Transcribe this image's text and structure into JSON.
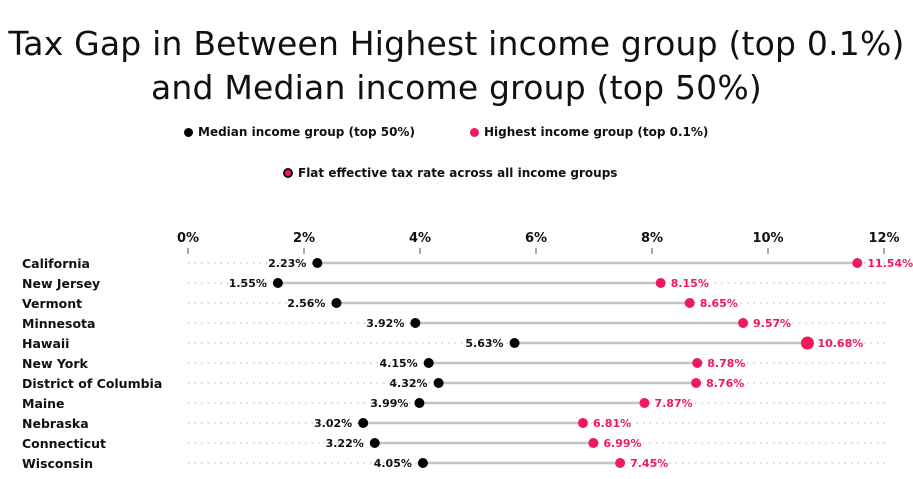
{
  "chart_data": {
    "type": "dumbbell",
    "title": "Tax Gap in Between Highest income group (top 0.1%) and Median income group (top 50%)",
    "xlim": [
      0,
      12
    ],
    "x_ticks": [
      "0%",
      "2%",
      "4%",
      "6%",
      "8%",
      "10%",
      "12%"
    ],
    "legend": [
      {
        "label": "Median income group (top 50%)",
        "color": "#000000"
      },
      {
        "label": "Highest income group (top 0.1%)",
        "color": "#f0195a"
      },
      {
        "label": "Flat effective tax rate across all income groups",
        "color": "#f0195a"
      }
    ],
    "categories": [
      "California",
      "New Jersey",
      "Vermont",
      "Minnesota",
      "Hawaii",
      "New York",
      "District of Columbia",
      "Maine",
      "Nebraska",
      "Connecticut",
      "Wisconsin"
    ],
    "series": [
      {
        "name": "Median income group (top 50%)",
        "color": "#000000",
        "values": [
          2.23,
          1.55,
          2.56,
          3.92,
          5.63,
          4.15,
          4.32,
          3.99,
          3.02,
          3.22,
          4.05
        ],
        "labels": [
          "2.23%",
          "1.55%",
          "2.56%",
          "3.92%",
          "5.63%",
          "4.15%",
          "4.32%",
          "3.99%",
          "3.02%",
          "3.22%",
          "4.05%"
        ]
      },
      {
        "name": "Highest income group (top 0.1%)",
        "color": "#f0195a",
        "values": [
          11.54,
          8.15,
          8.65,
          9.57,
          10.68,
          8.78,
          8.76,
          7.87,
          6.81,
          6.99,
          7.45
        ],
        "labels": [
          "11.54%",
          "8.15%",
          "8.65%",
          "9.57%",
          "10.68%",
          "8.78%",
          "8.76%",
          "7.87%",
          "6.81%",
          "6.99%",
          "7.45%"
        ]
      }
    ]
  }
}
